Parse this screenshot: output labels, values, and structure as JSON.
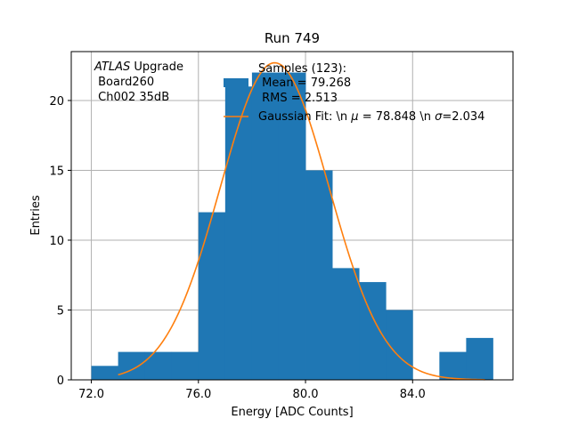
{
  "chart_data": {
    "type": "bar",
    "title": "Run 749",
    "xlabel": "Energy [ADC Counts]",
    "ylabel": "Entries",
    "xlim": [
      71.25,
      87.75
    ],
    "ylim": [
      0,
      23.5
    ],
    "xticks": [
      72.0,
      76.0,
      80.0,
      84.0
    ],
    "xtick_labels": [
      "72.0",
      "76.0",
      "80.0",
      "84.0"
    ],
    "yticks": [
      0,
      5,
      10,
      15,
      20
    ],
    "ytick_labels": [
      "0",
      "5",
      "10",
      "15",
      "20"
    ],
    "grid": true,
    "bins": [
      {
        "x0": 72,
        "x1": 73,
        "count": 1
      },
      {
        "x0": 73,
        "x1": 74,
        "count": 2
      },
      {
        "x0": 74,
        "x1": 75,
        "count": 2
      },
      {
        "x0": 75,
        "x1": 76,
        "count": 2
      },
      {
        "x0": 76,
        "x1": 77,
        "count": 12
      },
      {
        "x0": 77,
        "x1": 78,
        "count": 21
      },
      {
        "x0": 78,
        "x1": 79,
        "count": 22
      },
      {
        "x0": 79,
        "x1": 80,
        "count": 22
      },
      {
        "x0": 80,
        "x1": 81,
        "count": 15
      },
      {
        "x0": 81,
        "x1": 82,
        "count": 8
      },
      {
        "x0": 82,
        "x1": 83,
        "count": 7
      },
      {
        "x0": 83,
        "x1": 84,
        "count": 5
      },
      {
        "x0": 84,
        "x1": 85,
        "count": 0
      },
      {
        "x0": 85,
        "x1": 86,
        "count": 2
      },
      {
        "x0": 86,
        "x1": 87,
        "count": 3
      }
    ],
    "fit": {
      "type": "gaussian",
      "mu": 78.848,
      "sigma": 2.034,
      "amplitude": 22.7,
      "x_range": [
        73,
        86.7
      ]
    },
    "colors": {
      "histogram": "#1f77b4",
      "fit": "#ff7f0e",
      "grid": "#b0b0b0"
    },
    "annotation": {
      "italic": "ATLAS",
      "rest": " Upgrade",
      "line2": " Board260",
      "line3": " Ch002 35dB"
    },
    "legend": {
      "placement": "top-right",
      "hist_line1": "Samples (123):",
      "hist_line2": " Mean = 79.268",
      "hist_line3": " RMS = 2.513",
      "fit_prefix": "Gaussian Fit: \\n ",
      "fit_mu_symbol": "μ",
      "fit_mid": " = 78.848 \\n ",
      "fit_sigma_symbol": "σ",
      "fit_suffix": "=2.034"
    }
  }
}
